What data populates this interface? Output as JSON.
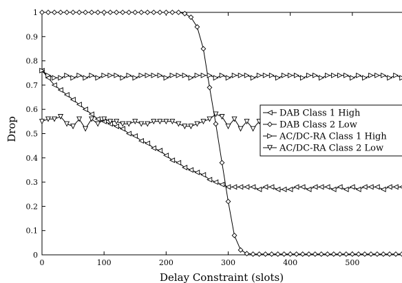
{
  "chart_data": {
    "type": "line",
    "title": "",
    "xlabel": "Delay Constraint (slots)",
    "ylabel": "Drop",
    "xlim": [
      0,
      580
    ],
    "ylim": [
      0,
      1
    ],
    "xticks": [
      0,
      100,
      200,
      300,
      400,
      500
    ],
    "yticks": [
      0,
      0.1,
      0.2,
      0.3,
      0.4,
      0.5,
      0.6,
      0.7,
      0.8,
      0.9,
      1
    ],
    "xtick_labels": [
      "0",
      "100",
      "200",
      "300",
      "400",
      "500"
    ],
    "ytick_labels": [
      "0",
      "0.1",
      "0.2",
      "0.3",
      "0.4",
      "0.5",
      "0.6",
      "0.7",
      "0.8",
      "0.9",
      "1"
    ],
    "grid": false,
    "legend_position": "right",
    "x": [
      0,
      10,
      20,
      30,
      40,
      50,
      60,
      70,
      80,
      90,
      100,
      110,
      120,
      130,
      140,
      150,
      160,
      170,
      180,
      190,
      200,
      210,
      220,
      230,
      240,
      250,
      260,
      270,
      280,
      290,
      300,
      310,
      320,
      330,
      340,
      350,
      360,
      370,
      380,
      390,
      400,
      410,
      420,
      430,
      440,
      450,
      460,
      470,
      480,
      490,
      500,
      510,
      520,
      530,
      540,
      550,
      560,
      570,
      580
    ],
    "series": [
      {
        "name": "DAB Class 1 High",
        "marker": "triangle-left",
        "values": [
          0.76,
          0.73,
          0.7,
          0.68,
          0.66,
          0.64,
          0.62,
          0.6,
          0.58,
          0.56,
          0.55,
          0.54,
          0.53,
          0.52,
          0.5,
          0.49,
          0.47,
          0.46,
          0.44,
          0.43,
          0.41,
          0.39,
          0.38,
          0.36,
          0.35,
          0.34,
          0.33,
          0.31,
          0.3,
          0.29,
          0.28,
          0.28,
          0.28,
          0.28,
          0.28,
          0.27,
          0.28,
          0.28,
          0.27,
          0.27,
          0.27,
          0.28,
          0.28,
          0.27,
          0.28,
          0.28,
          0.28,
          0.27,
          0.28,
          0.27,
          0.28,
          0.27,
          0.28,
          0.28,
          0.28,
          0.27,
          0.28,
          0.28,
          0.28
        ]
      },
      {
        "name": "DAB Class 2 Low",
        "marker": "diamond",
        "values": [
          1,
          1,
          1,
          1,
          1,
          1,
          1,
          1,
          1,
          1,
          1,
          1,
          1,
          1,
          1,
          1,
          1,
          1,
          1,
          1,
          1,
          1,
          1,
          0.995,
          0.98,
          0.94,
          0.85,
          0.69,
          0.54,
          0.38,
          0.22,
          0.08,
          0.02,
          0.005,
          0.003,
          0.003,
          0.003,
          0.003,
          0.003,
          0.003,
          0.003,
          0.003,
          0.003,
          0.003,
          0.003,
          0.003,
          0.003,
          0.003,
          0.003,
          0.003,
          0.003,
          0.003,
          0.003,
          0.003,
          0.003,
          0.003,
          0.003,
          0.003,
          0.003
        ]
      },
      {
        "name": "AC/DC-RA Class 1 High",
        "marker": "triangle-right",
        "values": [
          0.76,
          0.74,
          0.73,
          0.73,
          0.74,
          0.73,
          0.74,
          0.73,
          0.74,
          0.73,
          0.74,
          0.74,
          0.74,
          0.73,
          0.74,
          0.73,
          0.74,
          0.74,
          0.74,
          0.74,
          0.73,
          0.74,
          0.74,
          0.74,
          0.73,
          0.74,
          0.74,
          0.74,
          0.73,
          0.74,
          0.73,
          0.74,
          0.74,
          0.74,
          0.73,
          0.74,
          0.74,
          0.74,
          0.73,
          0.74,
          0.74,
          0.74,
          0.73,
          0.74,
          0.74,
          0.73,
          0.74,
          0.74,
          0.74,
          0.74,
          0.73,
          0.74,
          0.73,
          0.74,
          0.74,
          0.74,
          0.73,
          0.74,
          0.73
        ]
      },
      {
        "name": "AC/DC-RA Class 2 Low",
        "marker": "triangle-down",
        "values": [
          0.55,
          0.56,
          0.56,
          0.57,
          0.54,
          0.53,
          0.56,
          0.52,
          0.56,
          0.54,
          0.56,
          0.55,
          0.55,
          0.54,
          0.54,
          0.55,
          0.54,
          0.54,
          0.55,
          0.55,
          0.55,
          0.55,
          0.54,
          0.53,
          0.53,
          0.54,
          0.55,
          0.56,
          0.58,
          0.57,
          0.53,
          0.56,
          0.52,
          0.55,
          0.52,
          0.55,
          0.55,
          0.55,
          0.55,
          0.55,
          0.55,
          0.55,
          0.55,
          0.55,
          0.55,
          0.55,
          0.55,
          0.55,
          0.55,
          0.55,
          0.55,
          0.55,
          0.55,
          0.55,
          0.55,
          0.55,
          0.55,
          0.55,
          0.55
        ]
      }
    ]
  }
}
